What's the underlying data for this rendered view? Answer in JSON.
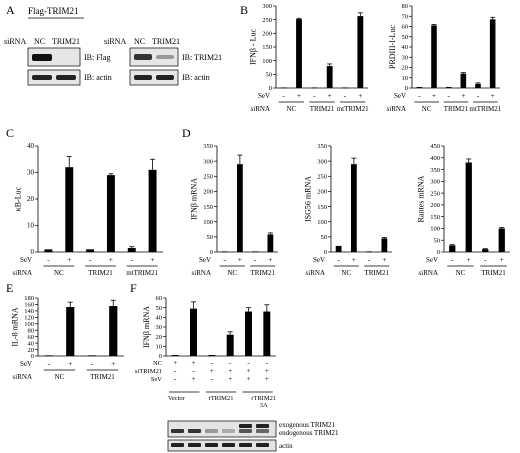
{
  "panel_labels": [
    "A",
    "B",
    "C",
    "D",
    "E",
    "F"
  ],
  "blot_a": {
    "title": "Flag-TRIM21",
    "left_lanes": [
      "NC",
      "TRIM21"
    ],
    "right_lanes": [
      "NC",
      "TRIM21"
    ],
    "sirna_label": "siRNA",
    "left_ib": [
      "IB: Flag",
      "IB: actin"
    ],
    "right_ib": [
      "IB: TRIM21",
      "IB: actin"
    ]
  },
  "blot_f": {
    "labels": [
      "exogenous TRIM21",
      "endogenous TRIM21",
      "actin"
    ]
  },
  "row_labels": {
    "sev": "SeV",
    "sirna": "siRNA",
    "nc": "NC",
    "sitrim21": "siTRIM21"
  },
  "chart_data": [
    {
      "panel": "B",
      "type": "bar",
      "ylabel": "IFNβ - Luc",
      "ylim": [
        0,
        300
      ],
      "yticks": [
        0,
        50,
        100,
        150,
        200,
        250,
        300
      ],
      "groups": [
        "NC",
        "TRIM21",
        "mtTRIM21"
      ],
      "sev": [
        "-",
        "+",
        "-",
        "+",
        "-",
        "+"
      ],
      "values": [
        2,
        252,
        2,
        80,
        2,
        263
      ],
      "errors": [
        0,
        3,
        0,
        8,
        0,
        12
      ]
    },
    {
      "panel": "B",
      "type": "bar",
      "ylabel": "PRDIII-I-Luc",
      "ylim": [
        0,
        80
      ],
      "yticks": [
        0,
        10,
        20,
        30,
        40,
        50,
        60,
        70,
        80
      ],
      "groups": [
        "NC",
        "TRIM21",
        "mtTRIM21"
      ],
      "sev": [
        "-",
        "+",
        "-",
        "+",
        "-",
        "+"
      ],
      "values": [
        1,
        61,
        1,
        14,
        4,
        67
      ],
      "errors": [
        0,
        1,
        0,
        1,
        1,
        2
      ]
    },
    {
      "panel": "C",
      "type": "bar",
      "ylabel": "κB-Luc",
      "ylim": [
        0,
        40
      ],
      "yticks": [
        0,
        10,
        20,
        30,
        40
      ],
      "groups": [
        "NC",
        "TRIM21",
        "mtTRIM21"
      ],
      "sev": [
        "-",
        "+",
        "-",
        "+",
        "-",
        "+"
      ],
      "values": [
        1,
        32,
        1,
        29,
        1.5,
        31
      ],
      "errors": [
        0,
        4,
        0,
        0.5,
        0.5,
        4
      ]
    },
    {
      "panel": "D",
      "type": "bar",
      "ylabel": "IFNβ mRNA",
      "ylim": [
        0,
        350
      ],
      "yticks": [
        0,
        50,
        100,
        150,
        200,
        250,
        300,
        350
      ],
      "groups": [
        "NC",
        "TRIM21"
      ],
      "sev": [
        "-",
        "+",
        "-",
        "+"
      ],
      "values": [
        2,
        290,
        2,
        58
      ],
      "errors": [
        0,
        30,
        0,
        5
      ]
    },
    {
      "panel": "D",
      "type": "bar",
      "ylabel": "ISG56 mRNA",
      "ylim": [
        0,
        350
      ],
      "yticks": [
        0,
        50,
        100,
        150,
        200,
        250,
        300,
        350
      ],
      "groups": [
        "NC",
        "TRIM21"
      ],
      "sev": [
        "-",
        "+",
        "-",
        "+"
      ],
      "values": [
        20,
        290,
        2,
        45
      ],
      "errors": [
        0,
        20,
        0,
        3
      ]
    },
    {
      "panel": "D",
      "type": "bar",
      "ylabel": "Rantes mRNA",
      "ylim": [
        0,
        450
      ],
      "yticks": [
        0,
        50,
        100,
        150,
        200,
        250,
        300,
        350,
        400,
        450
      ],
      "groups": [
        "NC",
        "TRIM21"
      ],
      "sev": [
        "-",
        "+",
        "-",
        "+"
      ],
      "values": [
        28,
        380,
        12,
        100
      ],
      "errors": [
        3,
        15,
        2,
        4
      ]
    },
    {
      "panel": "E",
      "type": "bar",
      "ylabel": "IL-8 mRNA",
      "ylim": [
        0,
        180
      ],
      "yticks": [
        0,
        20,
        40,
        60,
        80,
        100,
        120,
        140,
        160,
        180
      ],
      "groups": [
        "NC",
        "TRIM21"
      ],
      "sev": [
        "-",
        "+",
        "-",
        "+"
      ],
      "values": [
        2,
        152,
        2,
        155
      ],
      "errors": [
        0,
        15,
        0,
        18
      ]
    },
    {
      "panel": "F",
      "type": "bar",
      "ylabel": "IFNβ mRNA",
      "ylim": [
        0,
        60
      ],
      "yticks": [
        0,
        10,
        20,
        30,
        40,
        50,
        60
      ],
      "groups": [
        "Vector",
        "rTRIM21",
        "rTRIM21 3A"
      ],
      "rows": {
        "NC": [
          "+",
          "+",
          "-",
          "-",
          "-",
          "-"
        ],
        "siTRIM21": [
          "-",
          "-",
          "+",
          "+",
          "+",
          "+"
        ],
        "SeV": [
          "-",
          "+",
          "-",
          "+",
          "+",
          "+"
        ]
      },
      "values": [
        1,
        49,
        1,
        22,
        46,
        46
      ],
      "errors": [
        0,
        7,
        0,
        3,
        4,
        7
      ]
    }
  ]
}
